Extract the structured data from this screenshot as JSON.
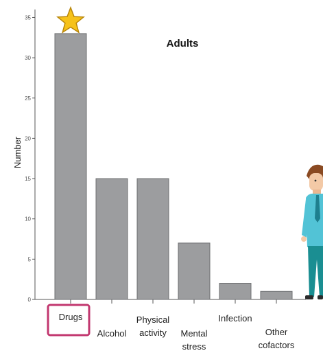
{
  "chart_data": {
    "type": "bar",
    "title": "Adults",
    "ylabel": "Number",
    "xlabel": "",
    "ylim": [
      0,
      36
    ],
    "yticks": [
      0,
      5,
      10,
      15,
      20,
      25,
      30,
      35
    ],
    "categories": [
      [
        "Drugs"
      ],
      [
        "Alcohol"
      ],
      [
        "Physical",
        "activity"
      ],
      [
        "Mental",
        "stress"
      ],
      [
        "Infection"
      ],
      [
        "Other",
        "cofactors"
      ]
    ],
    "values": [
      33,
      15,
      15,
      7,
      2,
      1
    ],
    "grid": false,
    "bar_color": "#9c9d9f",
    "highlight": {
      "category_index": 0,
      "box_color": "#c2376f",
      "star_color": "#f6c21a",
      "star_icon": "star-icon"
    },
    "illustration": "cartoon-man-figure"
  }
}
